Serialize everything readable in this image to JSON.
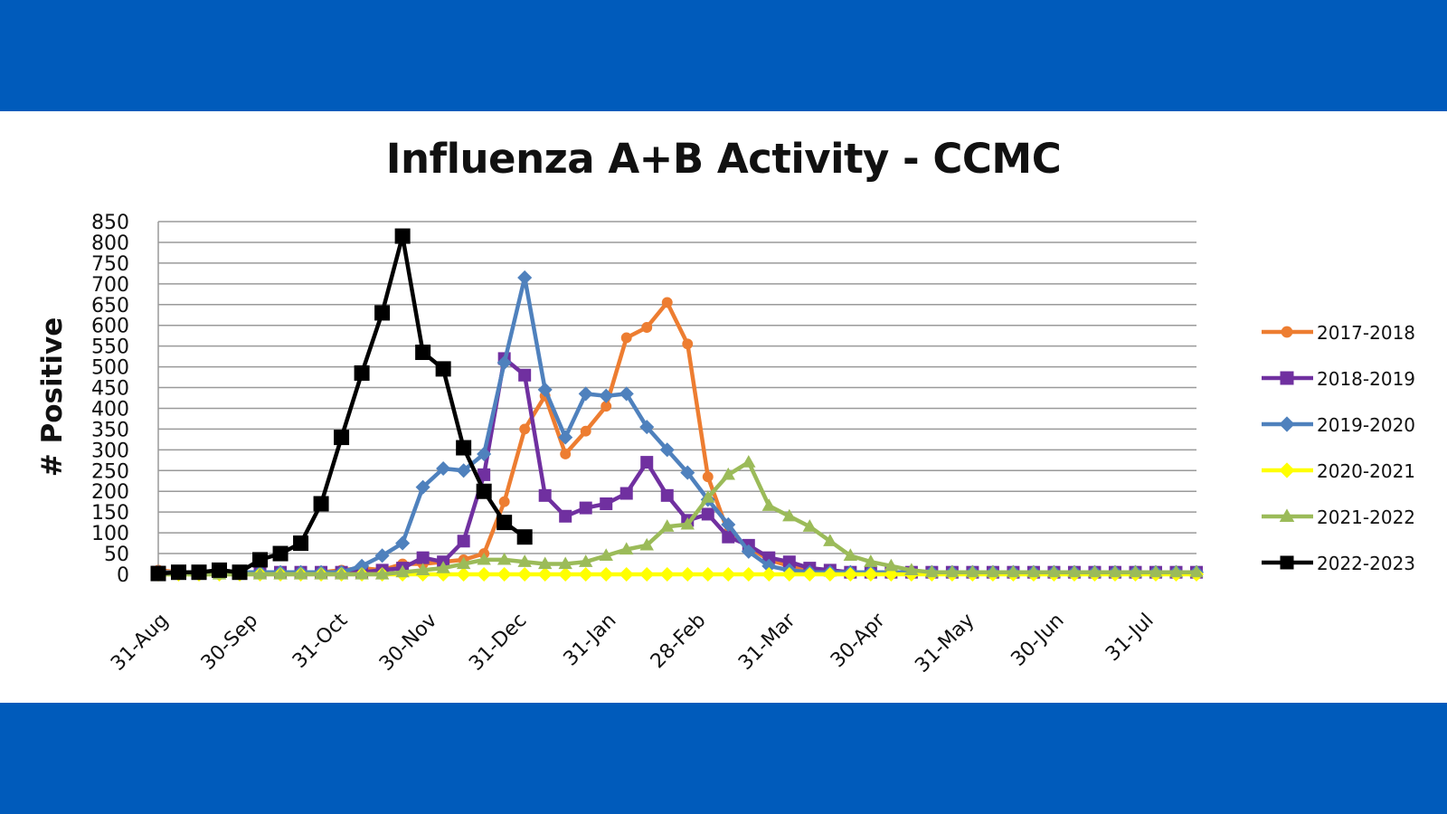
{
  "chart_data": {
    "type": "line",
    "title": "Influenza A+B Activity - CCMC",
    "xlabel": "",
    "ylabel": "# Positive",
    "ylim": [
      0,
      850
    ],
    "yticks": [
      0,
      50,
      100,
      150,
      200,
      250,
      300,
      350,
      400,
      450,
      500,
      550,
      600,
      650,
      700,
      750,
      800,
      850
    ],
    "xticks": [
      "31-Aug",
      "30-Sep",
      "31-Oct",
      "30-Nov",
      "31-Dec",
      "31-Jan",
      "28-Feb",
      "31-Mar",
      "30-Apr",
      "31-May",
      "30-Jun",
      "31-Jul"
    ],
    "x_weeks_per_tick": [
      0,
      4.4,
      8.8,
      13.2,
      17.6,
      22,
      26.4,
      30.8,
      35.2,
      39.6,
      44,
      48.4
    ],
    "grid": true,
    "legend": "right",
    "series": [
      {
        "name": "2017-2018",
        "color": "#ed7d31",
        "marker": "circle",
        "values": [
          10,
          5,
          5,
          5,
          5,
          5,
          5,
          5,
          5,
          10,
          15,
          10,
          25,
          25,
          30,
          35,
          50,
          175,
          350,
          430,
          290,
          345,
          405,
          570,
          595,
          655,
          555,
          235,
          100,
          65,
          35,
          20,
          10,
          8,
          5,
          5,
          5,
          5,
          5,
          5,
          5,
          5,
          5,
          5,
          5,
          5,
          5,
          5,
          5,
          5,
          5,
          5
        ]
      },
      {
        "name": "2018-2019",
        "color": "#7030a0",
        "marker": "square",
        "values": [
          5,
          5,
          5,
          5,
          5,
          5,
          5,
          5,
          5,
          5,
          5,
          10,
          15,
          40,
          30,
          80,
          240,
          520,
          480,
          190,
          140,
          160,
          170,
          195,
          270,
          190,
          130,
          145,
          90,
          70,
          40,
          30,
          15,
          10,
          5,
          5,
          5,
          5,
          5,
          5,
          5,
          5,
          5,
          5,
          5,
          5,
          5,
          5,
          5,
          5,
          5,
          5
        ]
      },
      {
        "name": "2019-2020",
        "color": "#4f81bd",
        "marker": "diamond",
        "values": [
          5,
          5,
          5,
          5,
          5,
          5,
          5,
          5,
          5,
          5,
          20,
          45,
          75,
          210,
          255,
          250,
          290,
          510,
          715,
          445,
          330,
          435,
          430,
          435,
          355,
          300,
          245,
          180,
          120,
          55,
          20,
          10,
          5,
          5,
          5,
          5,
          5,
          5,
          5,
          5,
          5,
          5,
          5,
          5,
          5,
          5,
          5,
          5,
          5,
          5,
          5,
          5
        ]
      },
      {
        "name": "2020-2021",
        "color": "#ffff00",
        "marker": "diamond",
        "values": [
          0,
          0,
          0,
          0,
          0,
          0,
          0,
          0,
          0,
          0,
          0,
          0,
          0,
          0,
          0,
          0,
          0,
          0,
          0,
          0,
          0,
          0,
          0,
          0,
          0,
          0,
          0,
          0,
          0,
          0,
          0,
          0,
          0,
          0,
          0,
          0,
          0,
          0,
          0,
          0,
          0,
          0,
          0,
          0,
          0,
          0,
          0,
          0,
          0,
          0,
          0,
          0
        ]
      },
      {
        "name": "2021-2022",
        "color": "#9bbb59",
        "marker": "triangle",
        "values": [
          0,
          0,
          0,
          0,
          0,
          0,
          0,
          0,
          0,
          0,
          0,
          0,
          5,
          10,
          15,
          25,
          35,
          35,
          30,
          25,
          25,
          30,
          45,
          60,
          70,
          115,
          120,
          185,
          240,
          270,
          165,
          140,
          115,
          80,
          45,
          30,
          20,
          10,
          5,
          5,
          5,
          5,
          5,
          5,
          5,
          5,
          5,
          5,
          5,
          5,
          5,
          5
        ]
      },
      {
        "name": "2022-2023",
        "color": "#000000",
        "marker": "square",
        "values": [
          2,
          5,
          5,
          10,
          5,
          35,
          50,
          75,
          170,
          330,
          485,
          630,
          815,
          535,
          495,
          305,
          200,
          125,
          90,
          null,
          null,
          null,
          null,
          null,
          null,
          null,
          null,
          null,
          null,
          null,
          null,
          null,
          null,
          null,
          null,
          null,
          null,
          null,
          null,
          null,
          null,
          null,
          null,
          null,
          null,
          null,
          null,
          null,
          null,
          null,
          null,
          null
        ]
      }
    ]
  }
}
